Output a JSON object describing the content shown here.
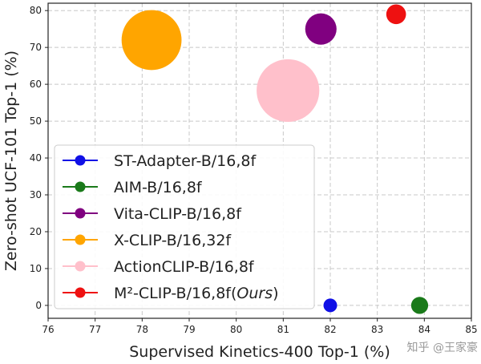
{
  "chart_data": {
    "type": "scatter",
    "title": "",
    "xlabel": "Supervised Kinetics-400 Top-1 (%)",
    "ylabel": "Zero-shot UCF-101 Top-1 (%)",
    "xlim": [
      76,
      85
    ],
    "ylim": [
      -3.5,
      82
    ],
    "xticks": [
      76,
      77,
      78,
      79,
      80,
      81,
      82,
      83,
      84,
      85
    ],
    "yticks": [
      0,
      10,
      20,
      30,
      40,
      50,
      60,
      70,
      80
    ],
    "grid": true,
    "legend_position": "lower-left",
    "series": [
      {
        "name": "ST-Adapter-B/16,8f",
        "name_suffix": "",
        "x": 82.0,
        "y": 0,
        "size_rel": 1.0,
        "color": "#1010e6"
      },
      {
        "name": "AIM-B/16,8f",
        "name_suffix": "",
        "x": 83.9,
        "y": 0,
        "size_rel": 1.25,
        "color": "#1a7a1a"
      },
      {
        "name": "Vita-CLIP-B/16,8f",
        "name_suffix": "",
        "x": 81.8,
        "y": 75,
        "size_rel": 2.3,
        "color": "#800080"
      },
      {
        "name": "X-CLIP-B/16,32f",
        "name_suffix": "",
        "x": 78.2,
        "y": 72,
        "size_rel": 4.4,
        "color": "#ffa500"
      },
      {
        "name": "ActionCLIP-B/16,8f",
        "name_suffix": "",
        "x": 81.1,
        "y": 58.3,
        "size_rel": 4.6,
        "color": "#ffc0cb"
      },
      {
        "name": "M²-CLIP-B/16,8f(",
        "name_suffix": "Ours",
        "name_end": ")",
        "x": 83.4,
        "y": 79,
        "size_rel": 1.45,
        "color": "#ee1111"
      }
    ]
  },
  "watermark": "知乎 @王家豪"
}
